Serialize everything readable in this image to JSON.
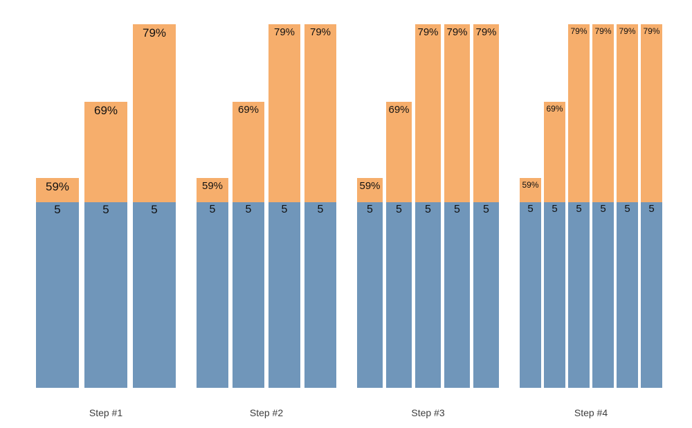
{
  "chart_data": {
    "type": "bar",
    "variant": "grouped-stacked",
    "title": "",
    "xlabel": "",
    "ylabel": "",
    "axes_visible": false,
    "grid": false,
    "legend": null,
    "background": "#ffffff",
    "categories": [
      "Step #1",
      "Step #2",
      "Step #3",
      "Step #4"
    ],
    "base_segment": {
      "value": 5,
      "label": "5",
      "color": "#7096BA"
    },
    "percent_segment": {
      "color": "#F6AE6C",
      "label_suffix": "%"
    },
    "label_text_color": "#111111",
    "category_text_color": "#3d3d3d",
    "groups": [
      {
        "label": "Step #1",
        "bars": [
          {
            "base": 5,
            "percent": 59
          },
          {
            "base": 5,
            "percent": 69
          },
          {
            "base": 5,
            "percent": 79
          }
        ]
      },
      {
        "label": "Step #2",
        "bars": [
          {
            "base": 5,
            "percent": 59
          },
          {
            "base": 5,
            "percent": 69
          },
          {
            "base": 5,
            "percent": 79
          },
          {
            "base": 5,
            "percent": 79
          }
        ]
      },
      {
        "label": "Step #3",
        "bars": [
          {
            "base": 5,
            "percent": 59
          },
          {
            "base": 5,
            "percent": 69
          },
          {
            "base": 5,
            "percent": 79
          },
          {
            "base": 5,
            "percent": 79
          },
          {
            "base": 5,
            "percent": 79
          }
        ]
      },
      {
        "label": "Step #4",
        "bars": [
          {
            "base": 5,
            "percent": 59
          },
          {
            "base": 5,
            "percent": 69
          },
          {
            "base": 5,
            "percent": 79
          },
          {
            "base": 5,
            "percent": 79
          },
          {
            "base": 5,
            "percent": 79
          },
          {
            "base": 5,
            "percent": 79
          }
        ]
      }
    ]
  }
}
